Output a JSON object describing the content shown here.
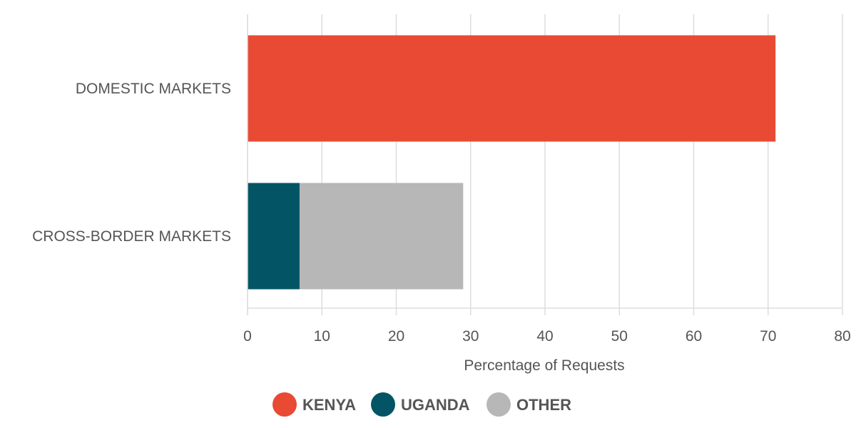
{
  "chart_data": {
    "type": "bar",
    "orientation": "horizontal",
    "stacked": true,
    "categories": [
      "DOMESTIC MARKETS",
      "CROSS-BORDER MARKETS"
    ],
    "series": [
      {
        "name": "KENYA",
        "color": "#e84a34",
        "values": [
          71,
          0
        ]
      },
      {
        "name": "UGANDA",
        "color": "#035566",
        "values": [
          0,
          7
        ]
      },
      {
        "name": "OTHER",
        "color": "#b7b7b7",
        "values": [
          0,
          22
        ]
      }
    ],
    "xlabel": "Percentage of Requests",
    "ylabel": "",
    "title": "",
    "xlim": [
      0,
      80
    ],
    "xticks": [
      "0",
      "10",
      "20",
      "30",
      "40",
      "50",
      "60",
      "70",
      "80"
    ],
    "grid": true,
    "legend_position": "bottom-center"
  }
}
